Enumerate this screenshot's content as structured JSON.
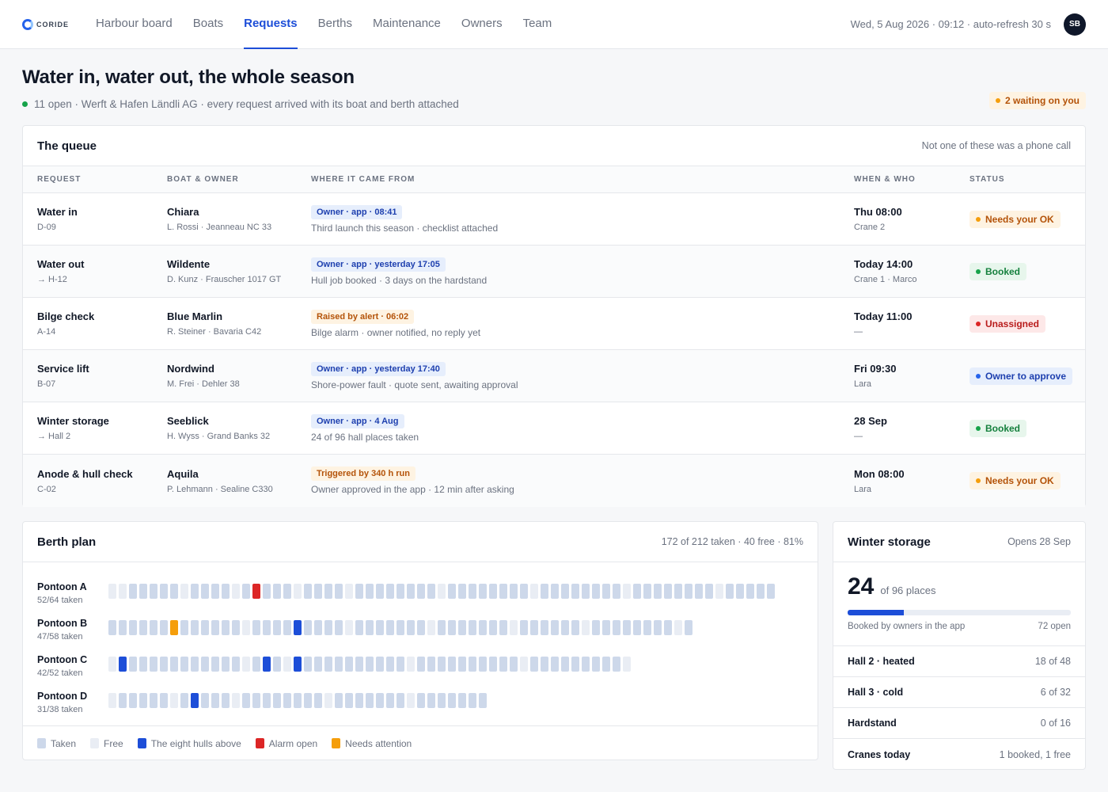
{
  "brand": {
    "logo_text": "CORIDE"
  },
  "nav": [
    {
      "label": "Harbour board",
      "active": false
    },
    {
      "label": "Boats",
      "active": false
    },
    {
      "label": "Requests",
      "active": true
    },
    {
      "label": "Berths",
      "active": false
    },
    {
      "label": "Maintenance",
      "active": false
    },
    {
      "label": "Owners",
      "active": false
    },
    {
      "label": "Team",
      "active": false
    }
  ],
  "topbar": {
    "clock": "Wed, 5 Aug 2026 · 09:12 · auto-refresh 30 s",
    "avatar": "SB"
  },
  "page": {
    "title": "Water in, water out, the whole season",
    "subtitle": "11 open · Werft & Hafen Ländli AG · every request arrived with its boat and berth attached",
    "waiting_badge": "2 waiting on you"
  },
  "queue": {
    "title": "The queue",
    "note": "Not one of these was a phone call",
    "columns": [
      "REQUEST",
      "BOAT & OWNER",
      "WHERE IT CAME FROM",
      "WHEN & WHO",
      "STATUS"
    ],
    "rows": [
      {
        "request": "Water in",
        "berth": "D-09",
        "boat": "Chiara",
        "owner": "L. Rossi · Jeanneau NC 33",
        "source": "Owner · app · 08:41",
        "source_kind": "blue",
        "source_note": "Third launch this season · checklist attached",
        "when": "Thu 08:00",
        "who": "Crane 2",
        "status": "Needs your OK",
        "status_kind": "amber"
      },
      {
        "request": "Water out",
        "berth": "→ H-12",
        "boat": "Wildente",
        "owner": "D. Kunz · Frauscher 1017 GT",
        "source": "Owner · app · yesterday 17:05",
        "source_kind": "blue",
        "source_note": "Hull job booked · 3 days on the hardstand",
        "when": "Today 14:00",
        "who": "Crane 1 · Marco",
        "status": "Booked",
        "status_kind": "green"
      },
      {
        "request": "Bilge check",
        "berth": "A-14",
        "boat": "Blue Marlin",
        "owner": "R. Steiner · Bavaria C42",
        "source": "Raised by alert · 06:02",
        "source_kind": "amber",
        "source_note": "Bilge alarm · owner notified, no reply yet",
        "when": "Today 11:00",
        "who": "—",
        "status": "Unassigned",
        "status_kind": "red"
      },
      {
        "request": "Service lift",
        "berth": "B-07",
        "boat": "Nordwind",
        "owner": "M. Frei · Dehler 38",
        "source": "Owner · app · yesterday 17:40",
        "source_kind": "blue",
        "source_note": "Shore-power fault · quote sent, awaiting approval",
        "when": "Fri 09:30",
        "who": "Lara",
        "status": "Owner to approve",
        "status_kind": "blue"
      },
      {
        "request": "Winter storage",
        "berth": "→ Hall 2",
        "boat": "Seeblick",
        "owner": "H. Wyss · Grand Banks 32",
        "source": "Owner · app · 4 Aug",
        "source_kind": "blue",
        "source_note": "24 of 96 hall places taken",
        "when": "28 Sep",
        "who": "—",
        "status": "Booked",
        "status_kind": "green"
      },
      {
        "request": "Anode & hull check",
        "berth": "C-02",
        "boat": "Aquila",
        "owner": "P. Lehmann · Sealine C330",
        "source": "Triggered by 340 h run",
        "source_kind": "amber",
        "source_note": "Owner approved in the app · 12 min after asking",
        "when": "Mon 08:00",
        "who": "Lara",
        "status": "Needs your OK",
        "status_kind": "amber"
      }
    ]
  },
  "berth_plan": {
    "title": "Berth plan",
    "summary": "172 of 212 taken · 40 free · 81%",
    "pontoons": [
      {
        "name": "Pontoon A",
        "taken_label": "52/64 taken",
        "slots": "fftttttfttttftatttfttttfttttttttfttttttttfttttttttfttttttttfttttt"
      },
      {
        "name": "Pontoon B",
        "taken_label": "47/58 taken",
        "slots": "ttttttnttttttftttthttttftttttttftttttttfttttttfttttttttft"
      },
      {
        "name": "Pontoon C",
        "taken_label": "42/52 taken",
        "slots": "fhtttttttttttfthtfhttttttttttfttttttttttftttttttttf"
      },
      {
        "name": "Pontoon D",
        "taken_label": "31/38 taken",
        "slots": "ftttttfthtttfttttttttftttttttfttttttt"
      }
    ],
    "legend": [
      {
        "label": "Taken",
        "color": "#cdd8ea"
      },
      {
        "label": "Free",
        "color": "#e9edf4"
      },
      {
        "label": "The eight hulls above",
        "color": "#1d4ed8"
      },
      {
        "label": "Alarm open",
        "color": "#dc2626"
      },
      {
        "label": "Needs attention",
        "color": "#f59e0b"
      }
    ]
  },
  "winter_storage": {
    "title": "Winter storage",
    "note": "Opens 28 Sep",
    "taken": "24",
    "of_label": "of 96 places",
    "fill_fraction": 0.25,
    "booked_note": "Booked by owners in the app",
    "open_note": "72 open",
    "rows": [
      {
        "label": "Hall 2 · heated",
        "value": "18 of 48"
      },
      {
        "label": "Hall 3 · cold",
        "value": "6 of 32"
      },
      {
        "label": "Hardstand",
        "value": "0 of 16"
      },
      {
        "label": "Cranes today",
        "value": "1 booked, 1 free"
      }
    ]
  }
}
